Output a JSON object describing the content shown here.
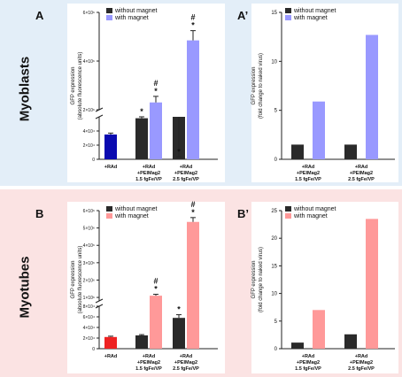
{
  "rows": [
    {
      "label": "Myoblasts",
      "color": "#e3eef8"
    },
    {
      "label": "Myotubes",
      "color": "#fbe3e3"
    }
  ],
  "panel_letters": [
    "A",
    "A’",
    "B",
    "B’"
  ],
  "chart_data": [
    {
      "id": "A",
      "type": "bar",
      "broken_axis": true,
      "ylabel": "GFP expression\n(absolute fluorescence units)",
      "categories": [
        "+RAd",
        "+RAd\n+PEIMag2\n1.5 fgFe/VP",
        "+RAd\n+PEIMag2\n2.5 fgFe/VP"
      ],
      "legend": [
        "without magnet",
        "with magnet"
      ],
      "legend_position": "top-left",
      "series_colors": {
        "base": "#0a0ab0",
        "without": "#2a2a2a",
        "with": "#9999ff"
      },
      "bars": [
        {
          "category": 0,
          "series": "base",
          "value": 35000,
          "err": 2000
        },
        {
          "category": 1,
          "series": "without",
          "value": 58000,
          "err": 2000,
          "marks": [
            "*"
          ]
        },
        {
          "category": 1,
          "series": "with",
          "value": 2300000,
          "err": 250000,
          "marks": [
            "#",
            "*"
          ]
        },
        {
          "category": 2,
          "series": "without",
          "value": 60000,
          "err": 2000,
          "marks": [
            "*"
          ]
        },
        {
          "category": 2,
          "series": "with",
          "value": 4850000,
          "err": 400000,
          "marks": [
            "#",
            "*"
          ]
        }
      ],
      "lower_axis": {
        "range": [
          0,
          60000
        ],
        "ticks": [
          0,
          20000,
          40000
        ],
        "tick_labels": [
          "0",
          "2×10⁴",
          "4×10⁴"
        ]
      },
      "upper_axis": {
        "range": [
          2000000,
          6000000
        ],
        "ticks": [
          2000000,
          4000000,
          6000000
        ],
        "tick_labels": [
          "2×10⁶",
          "4×10⁶",
          "6×10⁶"
        ]
      }
    },
    {
      "id": "A’",
      "type": "bar",
      "ylabel": "GFP expression\n(fold change to naked virus)",
      "categories": [
        "+RAd\n+PEIMag2\n1.5 fgFe/VP",
        "+RAd\n+PEIMag2\n2.5 fgFe/VP"
      ],
      "legend": [
        "without magnet",
        "with magnet"
      ],
      "legend_position": "top-left",
      "series_colors": {
        "without": "#2a2a2a",
        "with": "#9999ff"
      },
      "bars": [
        {
          "category": 0,
          "series": "without",
          "value": 1.5
        },
        {
          "category": 0,
          "series": "with",
          "value": 5.9
        },
        {
          "category": 1,
          "series": "without",
          "value": 1.5
        },
        {
          "category": 1,
          "series": "with",
          "value": 12.7
        }
      ],
      "ylim": [
        0,
        15
      ],
      "ticks": [
        0,
        5,
        10,
        15
      ],
      "tick_labels": [
        "0",
        "5",
        "10",
        "15"
      ]
    },
    {
      "id": "B",
      "type": "bar",
      "broken_axis": true,
      "ylabel": "GFP expression\n(absolute fluorescence units)",
      "categories": [
        "+RAd",
        "+RAd\n+PEIMag2\n1.5 fgFe/VP",
        "+RAd\n+PEIMag2\n2.5 fgFe/VP"
      ],
      "legend": [
        "without magnet",
        "with magnet"
      ],
      "legend_position": "top-left",
      "series_colors": {
        "base": "#ee2222",
        "without": "#2a2a2a",
        "with": "#ff9999"
      },
      "bars": [
        {
          "category": 0,
          "series": "base",
          "value": 22000,
          "err": 1500
        },
        {
          "category": 1,
          "series": "without",
          "value": 25000,
          "err": 1500
        },
        {
          "category": 1,
          "series": "with",
          "value": 1100000,
          "err": 80000,
          "marks": [
            "#",
            "*"
          ]
        },
        {
          "category": 2,
          "series": "without",
          "value": 58000,
          "err": 6000,
          "marks": [
            "*"
          ]
        },
        {
          "category": 2,
          "series": "with",
          "value": 5350000,
          "err": 250000,
          "marks": [
            "#",
            "*"
          ]
        }
      ],
      "lower_axis": {
        "range": [
          0,
          80000
        ],
        "ticks": [
          0,
          20000,
          40000,
          60000,
          80000
        ],
        "tick_labels": [
          "0",
          "2×10⁴",
          "4×10⁴",
          "6×10⁴",
          "8×10⁴"
        ]
      },
      "upper_axis": {
        "range": [
          800000,
          6000000
        ],
        "ticks": [
          1000000,
          2000000,
          3000000,
          4000000,
          5000000,
          6000000
        ],
        "tick_labels": [
          "1×10⁶",
          "2×10⁶",
          "3×10⁶",
          "4×10⁶",
          "5×10⁶",
          "6×10⁶"
        ]
      }
    },
    {
      "id": "B’",
      "type": "bar",
      "ylabel": "GFP expression\n(fold change to naked virus)",
      "categories": [
        "+RAd\n+PEIMag2\n1.5 fgFe/VP",
        "+RAd\n+PEIMag2\n2.5 fgFe/VP"
      ],
      "legend": [
        "without magnet",
        "with magnet"
      ],
      "legend_position": "top-left",
      "series_colors": {
        "without": "#2a2a2a",
        "with": "#ff9999"
      },
      "bars": [
        {
          "category": 0,
          "series": "without",
          "value": 1.1
        },
        {
          "category": 0,
          "series": "with",
          "value": 7.0
        },
        {
          "category": 1,
          "series": "without",
          "value": 2.6
        },
        {
          "category": 1,
          "series": "with",
          "value": 23.5
        }
      ],
      "ylim": [
        0,
        25
      ],
      "ticks": [
        0,
        5,
        10,
        15,
        20,
        25
      ],
      "tick_labels": [
        "0",
        "5",
        "10",
        "15",
        "20",
        "25"
      ]
    }
  ]
}
